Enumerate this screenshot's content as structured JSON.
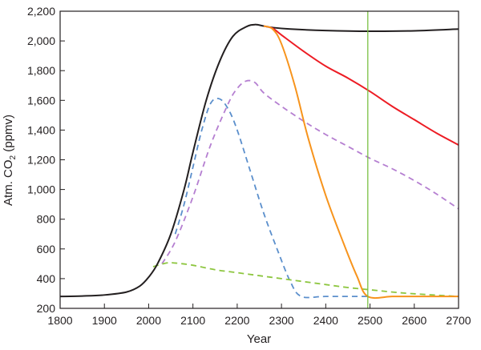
{
  "chart_data": {
    "type": "line",
    "title": "",
    "xlabel": "Year",
    "ylabel": {
      "main": "Atm. CO",
      "subscript": "2",
      "suffix": " (ppmv)"
    },
    "xlim": [
      1800,
      2700
    ],
    "ylim": [
      200,
      2200
    ],
    "x_ticks": [
      1800,
      1900,
      2000,
      2100,
      2200,
      2300,
      2400,
      2500,
      2600,
      2700
    ],
    "y_ticks": [
      200,
      400,
      600,
      800,
      1000,
      1200,
      1400,
      1600,
      1800,
      2000,
      2200
    ],
    "y_tick_labels": [
      "200",
      "400",
      "600",
      "800",
      "1,000",
      "1,200",
      "1,400",
      "1,600",
      "1,800",
      "2,000",
      "2,200"
    ],
    "vertical_line": {
      "x": 2495,
      "color": "#7ac143"
    },
    "series": [
      {
        "color": "#231f20",
        "style": "solid",
        "x": [
          1800,
          1850,
          1900,
          1950,
          1980,
          2000,
          2020,
          2050,
          2080,
          2100,
          2130,
          2160,
          2190,
          2220,
          2240,
          2260,
          2280,
          2320,
          2400,
          2500,
          2600,
          2700
        ],
        "y": [
          280,
          283,
          290,
          310,
          350,
          410,
          500,
          700,
          1000,
          1250,
          1600,
          1860,
          2030,
          2095,
          2110,
          2100,
          2090,
          2080,
          2070,
          2065,
          2068,
          2080
        ]
      },
      {
        "color": "#ed1c24",
        "style": "solid",
        "x": [
          2260,
          2280,
          2300,
          2350,
          2400,
          2450,
          2500,
          2550,
          2600,
          2650,
          2700
        ],
        "y": [
          2100,
          2085,
          2040,
          1930,
          1830,
          1750,
          1660,
          1560,
          1470,
          1380,
          1300
        ]
      },
      {
        "color": "#f7941d",
        "style": "solid",
        "x": [
          2260,
          2280,
          2300,
          2330,
          2360,
          2400,
          2440,
          2470,
          2495,
          2550,
          2600,
          2700
        ],
        "y": [
          2100,
          2080,
          1980,
          1700,
          1350,
          960,
          640,
          420,
          280,
          280,
          280,
          280
        ]
      },
      {
        "color": "#b57fd1",
        "style": "dashed",
        "x": [
          2030,
          2060,
          2100,
          2140,
          2180,
          2200,
          2220,
          2240,
          2260,
          2300,
          2350,
          2400,
          2450,
          2500,
          2550,
          2600,
          2650,
          2700
        ],
        "y": [
          500,
          650,
          950,
          1300,
          1580,
          1680,
          1730,
          1720,
          1650,
          1560,
          1460,
          1370,
          1290,
          1210,
          1140,
          1060,
          970,
          870
        ]
      },
      {
        "color": "#5b8fcc",
        "style": "dashed",
        "x": [
          2060,
          2080,
          2100,
          2120,
          2140,
          2160,
          2180,
          2200,
          2230,
          2260,
          2290,
          2320,
          2345,
          2400,
          2495
        ],
        "y": [
          700,
          900,
          1150,
          1400,
          1580,
          1610,
          1540,
          1400,
          1120,
          840,
          600,
          380,
          280,
          280,
          280
        ]
      },
      {
        "color": "#8dc63f",
        "style": "dashed",
        "x": [
          2010,
          2040,
          2060,
          2100,
          2150,
          2200,
          2250,
          2300,
          2350,
          2400,
          2450,
          2500,
          2550,
          2600,
          2700
        ],
        "y": [
          480,
          505,
          505,
          490,
          460,
          440,
          420,
          400,
          380,
          360,
          340,
          325,
          310,
          298,
          280
        ]
      }
    ]
  }
}
